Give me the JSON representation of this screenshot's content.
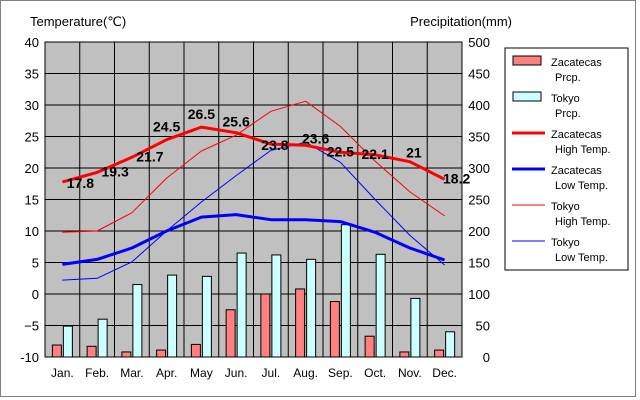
{
  "chart_data": {
    "type": "bar",
    "title_left": "Temperature(℃)",
    "title_right": "Precipitation(mm)",
    "categories": [
      "Jan.",
      "Feb.",
      "Mar.",
      "Apr.",
      "May",
      "Jun.",
      "Jul.",
      "Aug.",
      "Sep.",
      "Oct.",
      "Nov.",
      "Dec."
    ],
    "y_left": {
      "min": -10,
      "max": 40,
      "step": 5,
      "ticks": [
        "-10",
        "−5",
        "0",
        "5",
        "10",
        "15",
        "20",
        "25",
        "30",
        "35",
        "40"
      ]
    },
    "y_right": {
      "min": 0,
      "max": 500,
      "step": 50,
      "ticks": [
        "0",
        "50",
        "100",
        "150",
        "200",
        "250",
        "300",
        "350",
        "400",
        "450",
        "500"
      ]
    },
    "grid": true,
    "legend_position": "right",
    "bar_series": [
      {
        "name": "Zacatecas Prcp.",
        "legend": [
          "Zacatecas",
          "Prcp."
        ],
        "color": "#ff8080",
        "values": [
          19,
          17,
          8,
          11,
          20,
          75,
          100,
          108,
          88,
          33,
          8,
          11
        ]
      },
      {
        "name": "Tokyo Prcp.",
        "legend": [
          "Tokyo",
          "Prcp."
        ],
        "color": "#ccffff",
        "values": [
          49,
          60,
          115,
          130,
          128,
          165,
          162,
          155,
          210,
          163,
          93,
          40
        ]
      }
    ],
    "line_series": [
      {
        "name": "Zacatecas High Temp.",
        "legend": [
          "Zacatecas",
          "High Temp."
        ],
        "color": "#ff0000",
        "width": 3,
        "values": [
          17.8,
          19.3,
          21.7,
          24.5,
          26.5,
          25.6,
          23.8,
          23.6,
          22.5,
          22.1,
          21,
          18.2
        ],
        "labels": [
          "17.8",
          "19.3",
          "21.7",
          "24.5",
          "26.5",
          "25.6",
          "23.8",
          "23.6",
          "22.5",
          "22.1",
          "21",
          "18.2"
        ]
      },
      {
        "name": "Zacatecas Low Temp.",
        "legend": [
          "Zacatecas",
          "Low Temp."
        ],
        "color": "#0000ff",
        "width": 3,
        "values": [
          4.7,
          5.5,
          7.3,
          10.0,
          12.2,
          12.6,
          11.8,
          11.8,
          11.5,
          9.8,
          7.3,
          5.4
        ]
      },
      {
        "name": "Tokyo High Temp.",
        "legend": [
          "Tokyo",
          "High Temp."
        ],
        "color": "#ff0000",
        "width": 1,
        "values": [
          9.8,
          10.0,
          12.9,
          18.4,
          22.7,
          25.2,
          29.0,
          30.6,
          26.6,
          21.1,
          16.2,
          12.4
        ]
      },
      {
        "name": "Tokyo Low Temp.",
        "legend": [
          "Tokyo",
          "Low Temp."
        ],
        "color": "#0000ff",
        "width": 1,
        "values": [
          2.2,
          2.5,
          5.1,
          10.0,
          14.6,
          18.8,
          22.8,
          24.1,
          20.9,
          15.0,
          9.3,
          4.6
        ]
      }
    ]
  }
}
